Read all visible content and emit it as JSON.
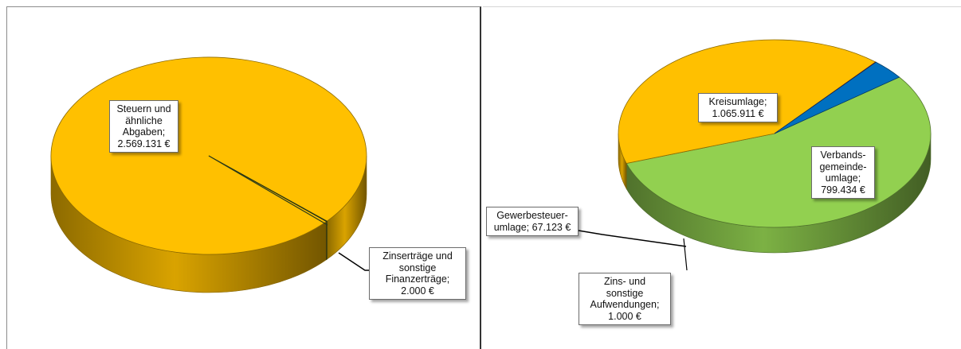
{
  "chart_data": [
    {
      "type": "pie",
      "title": "",
      "slices": [
        {
          "label": "Steuern und ähnliche Abgaben",
          "value": 2569131,
          "color": "#FFC000"
        },
        {
          "label": "Zinserträge und sonstige Finanzerträge",
          "value": 2000,
          "color": "#3A5A24"
        }
      ],
      "annotations": [
        {
          "lines": [
            "Steuern und",
            "ähnliche",
            "Abgaben;",
            "2.569.131 €"
          ]
        },
        {
          "lines": [
            "Zinserträge und",
            "sonstige",
            "Finanzerträge;",
            "2.000 €"
          ]
        }
      ]
    },
    {
      "type": "pie",
      "title": "",
      "slices": [
        {
          "label": "Kreisumlage",
          "value": 1065911,
          "color": "#92D050"
        },
        {
          "label": "Verbandsgemeindeumlage",
          "value": 799434,
          "color": "#FFC000"
        },
        {
          "label": "Zins- und sonstige Aufwendungen",
          "value": 1000,
          "color": "#E00000"
        },
        {
          "label": "Gewerbesteuerumlage",
          "value": 67123,
          "color": "#0070C0"
        }
      ],
      "annotations": [
        {
          "lines": [
            "Kreisumlage;",
            "1.065.911 €"
          ]
        },
        {
          "lines": [
            "Verbands-",
            "gemeinde-",
            "umlage;",
            "799.434 €"
          ]
        },
        {
          "lines": [
            "Gewerbesteuer-",
            "umlage; 67.123 €"
          ]
        },
        {
          "lines": [
            "Zins- und",
            "sonstige",
            "Aufwendungen;",
            "1.000 €"
          ]
        }
      ]
    }
  ]
}
